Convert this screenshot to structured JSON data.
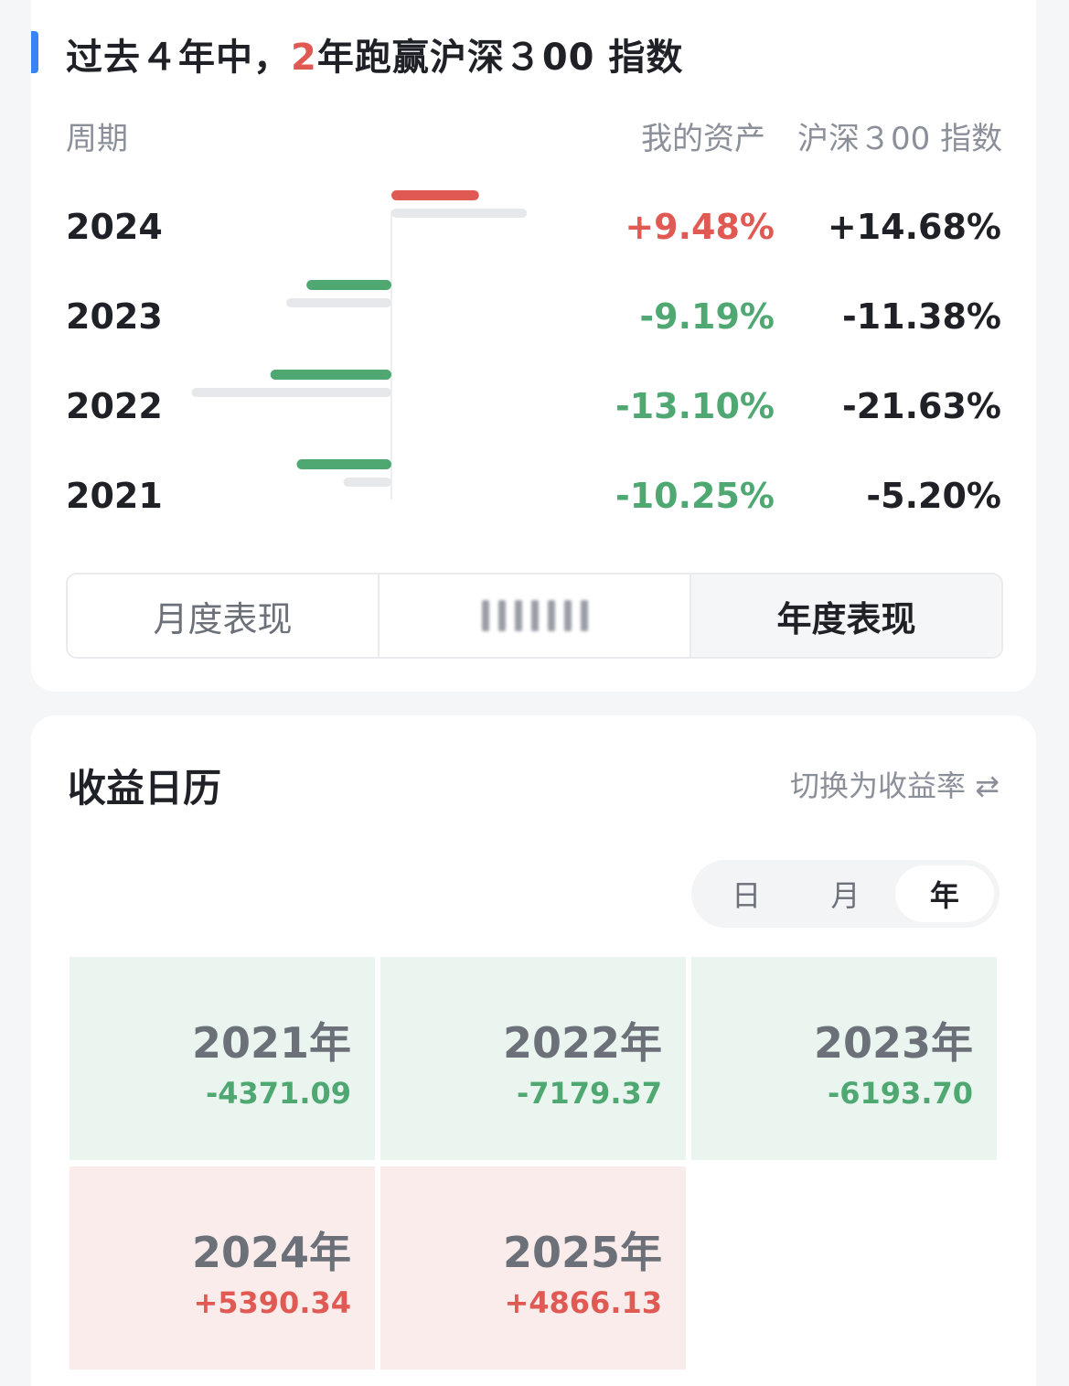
{
  "performance": {
    "title_prefix": "过去４年中，",
    "title_highlight": "2",
    "title_suffix": "年跑赢沪深３00 指数",
    "header_period": "周期",
    "header_mine": "我的资产",
    "header_index": "沪深３00 指数",
    "colors": {
      "positive": "#e05a53",
      "negative": "#4fa872",
      "index_bar": "#e6e8ec",
      "accent": "#3b82f6"
    },
    "rows": [
      {
        "year": "2024",
        "mine": "+9.48%",
        "mine_value": 9.48,
        "index": "+14.68%",
        "index_value": 14.68
      },
      {
        "year": "2023",
        "mine": "-9.19%",
        "mine_value": -9.19,
        "index": "-11.38%",
        "index_value": -11.38
      },
      {
        "year": "2022",
        "mine": "-13.10%",
        "mine_value": -13.1,
        "index": "-21.63%",
        "index_value": -21.63
      },
      {
        "year": "2021",
        "mine": "-10.25%",
        "mine_value": -10.25,
        "index": "-5.20%",
        "index_value": -5.2
      }
    ],
    "tabs": {
      "monthly": "月度表现",
      "yearly": "年度表现",
      "active": "yearly"
    }
  },
  "calendar": {
    "title": "收益日历",
    "switch_label": "切换为收益率",
    "switch_icon": "swap-arrows-icon",
    "granularity": {
      "day": "日",
      "month": "月",
      "year": "年",
      "active": "year"
    },
    "cells": [
      {
        "year": "2021年",
        "value": "-4371.09",
        "sign": "neg"
      },
      {
        "year": "2022年",
        "value": "-7179.37",
        "sign": "neg"
      },
      {
        "year": "2023年",
        "value": "-6193.70",
        "sign": "neg"
      },
      {
        "year": "2024年",
        "value": "+5390.34",
        "sign": "pos"
      },
      {
        "year": "2025年",
        "value": "+4866.13",
        "sign": "pos"
      }
    ]
  }
}
